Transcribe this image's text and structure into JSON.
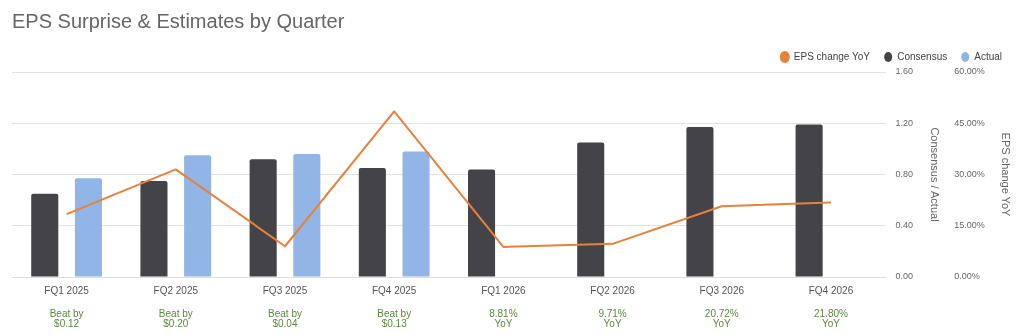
{
  "chart_data": {
    "type": "bar",
    "title": "EPS Surprise & Estimates by Quarter",
    "categories": [
      "FQ1 2025",
      "FQ2 2025",
      "FQ3 2025",
      "FQ4 2025",
      "FQ1 2026",
      "FQ2 2026",
      "FQ3 2026",
      "FQ4 2026"
    ],
    "series": [
      {
        "name": "EPS change YoY",
        "type": "line",
        "axis": "y2",
        "color": "#e8823a",
        "values": [
          18.4,
          31.5,
          9.0,
          48.5,
          8.81,
          9.71,
          20.72,
          21.8
        ]
      },
      {
        "name": "Consensus",
        "color": "#434348",
        "values": [
          0.65,
          0.75,
          0.92,
          0.85,
          0.84,
          1.05,
          1.17,
          1.19
        ]
      },
      {
        "name": "Actual",
        "color": "#90b5e6",
        "values": [
          0.77,
          0.95,
          0.96,
          0.98,
          null,
          null,
          null,
          null
        ]
      }
    ],
    "ylabel": "Consensus / Actual",
    "y2label": "EPS change YoY",
    "ylim": [
      0,
      1.6
    ],
    "yticks": [
      {
        "value": 0,
        "label": "0.00"
      },
      {
        "value": 0.4,
        "label": "0.40"
      },
      {
        "value": 0.8,
        "label": "0.80"
      },
      {
        "value": 1.2,
        "label": "1.20"
      },
      {
        "value": 1.6,
        "label": "1.60"
      }
    ],
    "y2lim": [
      0,
      60
    ],
    "y2ticks": [
      {
        "value": 0,
        "label": "0.00%"
      },
      {
        "value": 15,
        "label": "15.00%"
      },
      {
        "value": 30,
        "label": "30.00%"
      },
      {
        "value": 45,
        "label": "45.00%"
      },
      {
        "value": 60,
        "label": "60.00%"
      }
    ],
    "annotations": [
      "Beat by $0.12",
      "Beat by $0.20",
      "Beat by $0.04",
      "Beat by $0.13",
      "8.81% YoY",
      "9.71% YoY",
      "20.72% YoY",
      "21.80% YoY"
    ],
    "legend": "top right",
    "grid": "y",
    "marker": "none",
    "line_style": "solid"
  }
}
